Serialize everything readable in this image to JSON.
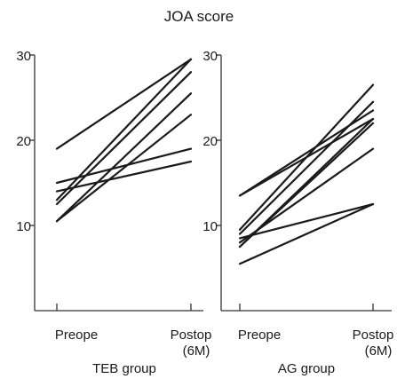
{
  "chart_data": {
    "type": "line",
    "title": "JOA score",
    "ylim": [
      0,
      30
    ],
    "yticks": [
      "30",
      "20",
      "10"
    ],
    "categories": [
      "Preope",
      "Postop\n(6M)"
    ],
    "panels": [
      {
        "name": "TEB group",
        "categories": [
          "Preope",
          "Postop (6M)"
        ],
        "series": [
          {
            "values": [
              19,
              29.5
            ]
          },
          {
            "values": [
              15,
              19
            ]
          },
          {
            "values": [
              14,
              17.5
            ]
          },
          {
            "values": [
              13,
              29.5
            ]
          },
          {
            "values": [
              12.5,
              28
            ]
          },
          {
            "values": [
              10.5,
              25.5
            ]
          },
          {
            "values": [
              10.5,
              23
            ]
          }
        ]
      },
      {
        "name": "AG group",
        "categories": [
          "Preope",
          "Postop (6M)"
        ],
        "series": [
          {
            "values": [
              13.5,
              23.5
            ]
          },
          {
            "values": [
              13.5,
              22.5
            ]
          },
          {
            "values": [
              9.5,
              26.5
            ]
          },
          {
            "values": [
              9,
              24.5
            ]
          },
          {
            "values": [
              8.5,
              12.5
            ]
          },
          {
            "values": [
              8,
              19
            ]
          },
          {
            "values": [
              7.5,
              22
            ]
          },
          {
            "values": [
              7.5,
              22.5
            ]
          },
          {
            "values": [
              5.5,
              12.5
            ]
          }
        ]
      }
    ],
    "colors": {
      "line": "#1a1a1a",
      "axis": "#333333"
    }
  }
}
